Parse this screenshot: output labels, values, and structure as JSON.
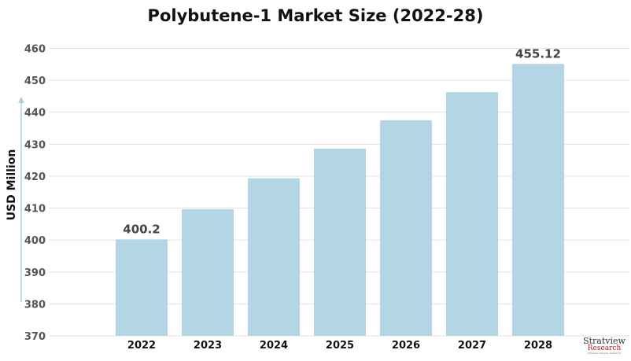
{
  "chart_data": {
    "type": "bar",
    "title": "Polybutene-1 Market Size (2022-28)",
    "xlabel": "",
    "ylabel": "USD Million",
    "categories": [
      "2022",
      "2023",
      "2024",
      "2025",
      "2026",
      "2027",
      "2028"
    ],
    "values": [
      400.2,
      409.6,
      419.3,
      428.6,
      437.5,
      446.3,
      455.12
    ],
    "data_labels": {
      "0": "400.2",
      "6": "455.12"
    },
    "ylim": [
      370,
      460
    ],
    "yticks": [
      370,
      380,
      390,
      400,
      410,
      420,
      430,
      440,
      450,
      460
    ],
    "grid": true,
    "bar_color": "#b3d5e4"
  },
  "logo": {
    "line1": "Stratview",
    "line2": "Research",
    "line3": "Strategic Insights Delivered"
  }
}
